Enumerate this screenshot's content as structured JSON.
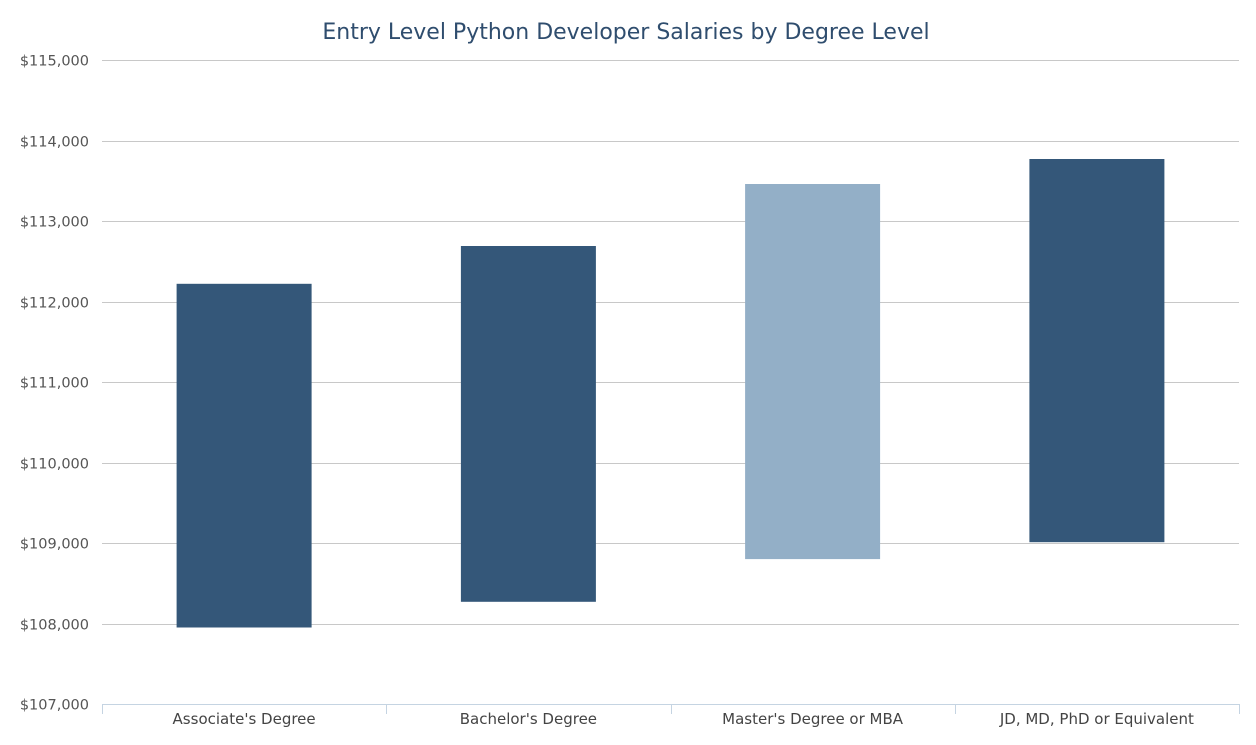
{
  "chart_data": {
    "type": "bar",
    "subtype": "floating-range",
    "title": "Entry Level Python Developer Salaries by Degree Level",
    "xlabel": "",
    "ylabel": "",
    "categories": [
      "Associate's Degree",
      "Bachelor's Degree",
      "Master's Degree or MBA",
      "JD, MD, PhD or Equivalent"
    ],
    "series": [
      {
        "low": [
          107950,
          108270,
          108800,
          109010
        ],
        "high": [
          112220,
          112690,
          113460,
          113770
        ]
      }
    ],
    "bar_colors": [
      "#345779",
      "#345779",
      "#93afc7",
      "#345779"
    ],
    "ylim": [
      107000,
      115000
    ],
    "yticks": [
      107000,
      108000,
      109000,
      110000,
      111000,
      112000,
      113000,
      114000,
      115000
    ],
    "ytick_labels": [
      "$107,000",
      "$108,000",
      "$109,000",
      "$110,000",
      "$111,000",
      "$112,000",
      "$113,000",
      "$114,000",
      "$115,000"
    ],
    "grid": true,
    "legend": "none"
  },
  "colors": {
    "title": "#2f4d6e",
    "grid": "#c8c8c8",
    "axis": "#c5d4e2",
    "tick_label": "#555555",
    "category_label": "#444444"
  }
}
